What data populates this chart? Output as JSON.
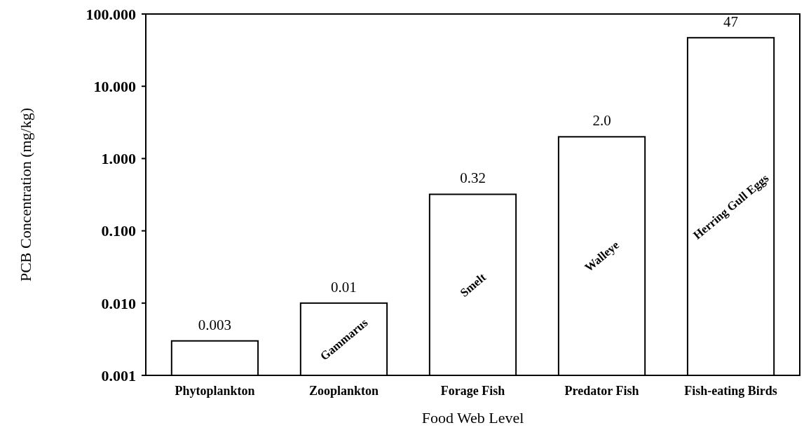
{
  "chart_data": {
    "type": "bar",
    "xlabel": "Food Web Level",
    "ylabel": "PCB Concentration (mg/kg)",
    "categories": [
      "Phytoplankton",
      "Zooplankton",
      "Forage Fish",
      "Predator Fish",
      "Fish-eating Birds"
    ],
    "values": [
      0.003,
      0.01,
      0.32,
      2,
      47
    ],
    "value_labels": [
      "0.003",
      "0.01",
      "0.32",
      "2.0",
      "47"
    ],
    "color": "#ffffff",
    "log": true,
    "ylim": [
      0.001,
      100
    ],
    "yticks": [
      {
        "value": 0.001,
        "label": "0.001"
      },
      {
        "value": 0.01,
        "label": "0.010"
      },
      {
        "value": 0.1,
        "label": "0.100"
      },
      {
        "value": 1,
        "label": "1.000"
      },
      {
        "value": 10,
        "label": "10.000"
      },
      {
        "value": 100,
        "label": "100.000"
      }
    ],
    "grid": false,
    "annotations": [
      "Gammarus",
      "Smelt",
      "Walleye",
      "Herring Gull Eggs"
    ]
  }
}
